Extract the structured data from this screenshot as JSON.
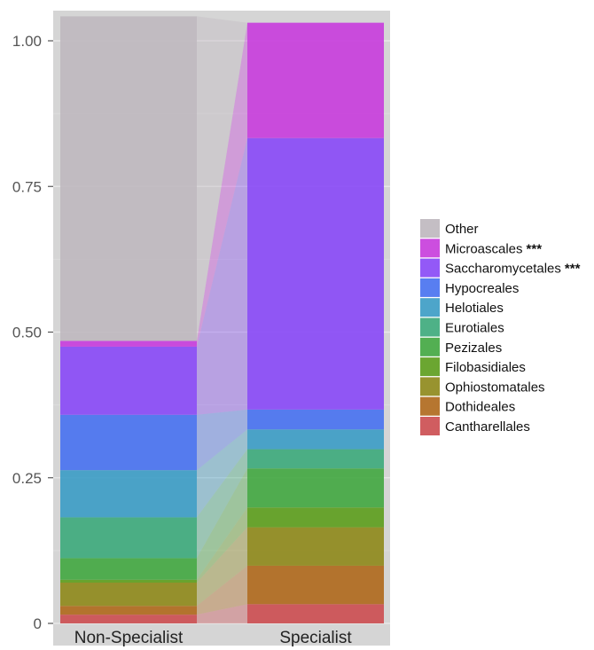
{
  "chart_data": {
    "type": "bar",
    "subtype": "stacked-alluvial",
    "categories": [
      "Non-Specialist",
      "Specialist"
    ],
    "yticks": [
      "0",
      "0.25",
      "0.50",
      "0.75",
      "1.00"
    ],
    "ylim": [
      0,
      1.04
    ],
    "grid": true,
    "legend_position": "right",
    "series": [
      {
        "name": "Cantharellales",
        "values": [
          0.015,
          0.033
        ],
        "color": "#CC4F53"
      },
      {
        "name": "Dothideales",
        "values": [
          0.015,
          0.066
        ],
        "color": "#B06A1E"
      },
      {
        "name": "Ophiostomatales",
        "values": [
          0.04,
          0.066
        ],
        "color": "#8F8A1D"
      },
      {
        "name": "Filobasidiales",
        "values": [
          0.005,
          0.034
        ],
        "color": "#5E9E1F"
      },
      {
        "name": "Pezizales",
        "values": [
          0.037,
          0.067
        ],
        "color": "#44A843"
      },
      {
        "name": "Eurotiales",
        "values": [
          0.07,
          0.033
        ],
        "color": "#3FAA7D"
      },
      {
        "name": "Helotiales",
        "values": [
          0.081,
          0.034
        ],
        "color": "#3E9DC6"
      },
      {
        "name": "Hypocreales",
        "values": [
          0.095,
          0.034
        ],
        "color": "#4A73F0"
      },
      {
        "name": "Saccharomycetales",
        "values": [
          0.117,
          0.466
        ],
        "color": "#8A4BF6"
      },
      {
        "name": "Microascales",
        "values": [
          0.01,
          0.198
        ],
        "color": "#C83FDC"
      },
      {
        "name": "Other",
        "values": [
          0.557,
          0.0
        ],
        "color": "#BFB9BF"
      }
    ],
    "legend_entries": [
      {
        "label": "Other",
        "marker": "",
        "color": "#BFB9BF"
      },
      {
        "label": "Microascales",
        "marker": "***",
        "color": "#C83FDC"
      },
      {
        "label": "Saccharomycetales",
        "marker": "***",
        "color": "#8A4BF6"
      },
      {
        "label": "Hypocreales",
        "marker": "",
        "color": "#4A73F0"
      },
      {
        "label": "Helotiales",
        "marker": "",
        "color": "#3E9DC6"
      },
      {
        "label": "Eurotiales",
        "marker": "",
        "color": "#3FAA7D"
      },
      {
        "label": "Pezizales",
        "marker": "",
        "color": "#44A843"
      },
      {
        "label": "Filobasidiales",
        "marker": "",
        "color": "#5E9E1F"
      },
      {
        "label": "Ophiostomatales",
        "marker": "",
        "color": "#8F8A1D"
      },
      {
        "label": "Dothideales",
        "marker": "",
        "color": "#B06A1E"
      },
      {
        "label": "Cantharellales",
        "marker": "",
        "color": "#CC4F53"
      }
    ],
    "colors": {
      "panel_background": "#D5D5D5",
      "gridline": "#E8E8E8"
    }
  }
}
